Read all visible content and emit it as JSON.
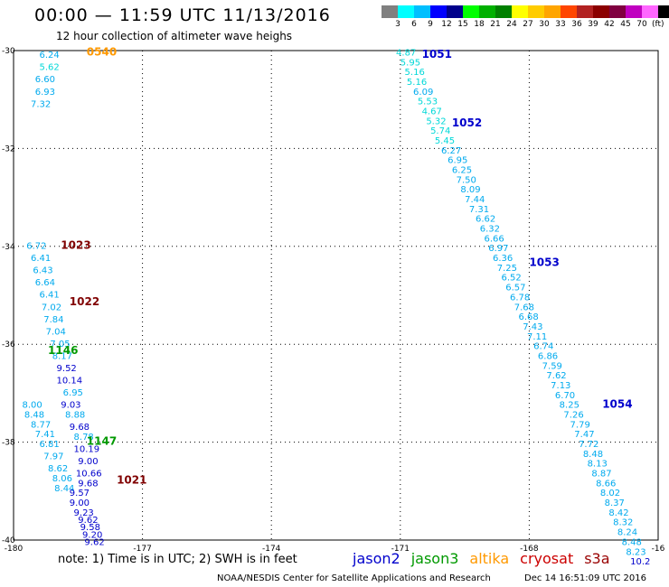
{
  "header": {
    "title": "00:00 — 11:59 UTC 11/13/2016",
    "subtitle": "12 hour collection of altimeter wave heighs"
  },
  "colorbar": {
    "colors": [
      "#808080",
      "#00ffff",
      "#00bfff",
      "#0000ff",
      "#00008b",
      "#00ff00",
      "#00b000",
      "#008000",
      "#ffff00",
      "#ffcc00",
      "#ffa500",
      "#ff4500",
      "#b22222",
      "#8b0000",
      "#800040",
      "#c000c0",
      "#ff66ff",
      "#000000"
    ],
    "labels": [
      "3",
      "6",
      "9",
      "12",
      "15",
      "18",
      "21",
      "24",
      "27",
      "30",
      "33",
      "36",
      "39",
      "42",
      "45",
      "70"
    ],
    "unit": "(ft)"
  },
  "footer": {
    "note": "note: 1) Time is in UTC; 2) SWH is in feet",
    "credit": "NOAA/NESDIS Center for Satellite Applications and Research",
    "stamp": "Dec 14 16:51:09 UTC 2016"
  },
  "legend": [
    {
      "name": "jason2",
      "color": "#0000cc"
    },
    {
      "name": "jason3",
      "color": "#009900"
    },
    {
      "name": "altika",
      "color": "#ff9900"
    },
    {
      "name": "cryosat",
      "color": "#cc0000"
    },
    {
      "name": "s3a",
      "color": "#990000"
    }
  ],
  "chart_data": {
    "type": "scatter",
    "xlim": [
      -180,
      -165
    ],
    "ylim": [
      -40,
      -30
    ],
    "x_ticks": [
      "-180",
      "-177",
      "-174",
      "-171",
      "-168",
      "-16"
    ],
    "y_ticks": [
      "-30",
      "-32",
      "-34",
      "-36",
      "-38",
      "-40"
    ],
    "grid": true,
    "time_labels": [
      {
        "text": "0540",
        "color": "#ff9900",
        "lon": -178.3,
        "lat": -30.1
      },
      {
        "text": "1023",
        "color": "#800000",
        "lon": -178.9,
        "lat": -34.05
      },
      {
        "text": "1022",
        "color": "#800000",
        "lon": -178.7,
        "lat": -35.2
      },
      {
        "text": "1146",
        "color": "#009900",
        "lon": -179.2,
        "lat": -36.2
      },
      {
        "text": "1147",
        "color": "#009900",
        "lon": -178.3,
        "lat": -38.05
      },
      {
        "text": "1021",
        "color": "#800000",
        "lon": -177.6,
        "lat": -38.85
      },
      {
        "text": "1051",
        "color": "#0000cc",
        "lon": -170.5,
        "lat": -30.15
      },
      {
        "text": "1052",
        "color": "#0000cc",
        "lon": -169.8,
        "lat": -31.55
      },
      {
        "text": "1053",
        "color": "#0000cc",
        "lon": -168.0,
        "lat": -34.4
      },
      {
        "text": "1054",
        "color": "#0000cc",
        "lon": -166.3,
        "lat": -37.3
      }
    ],
    "tracks": [
      {
        "points": [
          {
            "lon": -179.4,
            "lat": -30.15,
            "v": "6.24"
          },
          {
            "lon": -179.4,
            "lat": -30.4,
            "v": "5.62"
          },
          {
            "lon": -179.5,
            "lat": -30.65,
            "v": "6.60"
          },
          {
            "lon": -179.5,
            "lat": -30.9,
            "v": "6.93"
          },
          {
            "lon": -179.6,
            "lat": -31.15,
            "v": "7.32"
          }
        ]
      },
      {
        "points": [
          {
            "lon": -179.7,
            "lat": -34.05,
            "v": "6.72"
          },
          {
            "lon": -179.6,
            "lat": -34.3,
            "v": "6.41"
          },
          {
            "lon": -179.55,
            "lat": -34.55,
            "v": "6.43"
          },
          {
            "lon": -179.5,
            "lat": -34.8,
            "v": "6.64"
          },
          {
            "lon": -179.4,
            "lat": -35.05,
            "v": "6.41"
          },
          {
            "lon": -179.35,
            "lat": -35.3,
            "v": "7.02"
          },
          {
            "lon": -179.3,
            "lat": -35.55,
            "v": "7.84"
          },
          {
            "lon": -179.25,
            "lat": -35.8,
            "v": "7.04"
          },
          {
            "lon": -179.15,
            "lat": -36.05,
            "v": "7.05"
          },
          {
            "lon": -179.1,
            "lat": -36.3,
            "v": "8.17"
          },
          {
            "lon": -179.0,
            "lat": -36.55,
            "v": "9.52"
          },
          {
            "lon": -179.0,
            "lat": -36.8,
            "v": "10.14"
          },
          {
            "lon": -178.85,
            "lat": -37.05,
            "v": "6.95"
          },
          {
            "lon": -179.8,
            "lat": -37.3,
            "v": "8.00"
          },
          {
            "lon": -179.75,
            "lat": -37.5,
            "v": "8.48"
          },
          {
            "lon": -179.6,
            "lat": -37.7,
            "v": "8.77"
          },
          {
            "lon": -179.5,
            "lat": -37.9,
            "v": "7.41"
          },
          {
            "lon": -179.4,
            "lat": -38.1,
            "v": "6.81"
          },
          {
            "lon": -179.3,
            "lat": -38.35,
            "v": "7.97"
          },
          {
            "lon": -179.2,
            "lat": -38.6,
            "v": "8.62"
          },
          {
            "lon": -179.1,
            "lat": -38.8,
            "v": "8.06"
          },
          {
            "lon": -179.05,
            "lat": -39.0,
            "v": "8.44"
          }
        ]
      },
      {
        "points": [
          {
            "lon": -178.9,
            "lat": -37.3,
            "v": "9.03"
          },
          {
            "lon": -178.8,
            "lat": -37.5,
            "v": "8.88"
          },
          {
            "lon": -178.7,
            "lat": -37.75,
            "v": "9.68"
          },
          {
            "lon": -178.6,
            "lat": -37.95,
            "v": "8.78"
          },
          {
            "lon": -178.6,
            "lat": -38.2,
            "v": "10.19"
          },
          {
            "lon": -178.5,
            "lat": -38.45,
            "v": "9.00"
          },
          {
            "lon": -178.55,
            "lat": -38.7,
            "v": "10.66"
          },
          {
            "lon": -178.5,
            "lat": -38.9,
            "v": "9.68"
          },
          {
            "lon": -178.7,
            "lat": -39.1,
            "v": "9.57"
          },
          {
            "lon": -178.7,
            "lat": -39.3,
            "v": "9.00"
          },
          {
            "lon": -178.6,
            "lat": -39.5,
            "v": "9.23"
          },
          {
            "lon": -178.5,
            "lat": -39.65,
            "v": "9.62"
          },
          {
            "lon": -178.45,
            "lat": -39.8,
            "v": "9.58"
          },
          {
            "lon": -178.4,
            "lat": -39.95,
            "v": "9.20"
          },
          {
            "lon": -178.35,
            "lat": -40.1,
            "v": "9.62"
          }
        ]
      },
      {
        "points": [
          {
            "lon": -171.1,
            "lat": -30.1,
            "v": "4.87"
          },
          {
            "lon": -171.0,
            "lat": -30.3,
            "v": "5.95"
          },
          {
            "lon": -170.9,
            "lat": -30.5,
            "v": "5.16"
          },
          {
            "lon": -170.85,
            "lat": -30.7,
            "v": "5.16"
          },
          {
            "lon": -170.7,
            "lat": -30.9,
            "v": "6.09"
          },
          {
            "lon": -170.6,
            "lat": -31.1,
            "v": "5.53"
          },
          {
            "lon": -170.5,
            "lat": -31.3,
            "v": "4.67"
          },
          {
            "lon": -170.4,
            "lat": -31.5,
            "v": "5.32"
          },
          {
            "lon": -170.3,
            "lat": -31.7,
            "v": "5.74"
          },
          {
            "lon": -170.2,
            "lat": -31.9,
            "v": "5.45"
          },
          {
            "lon": -170.05,
            "lat": -32.1,
            "v": "6.27"
          },
          {
            "lon": -169.9,
            "lat": -32.3,
            "v": "6.95"
          },
          {
            "lon": -169.8,
            "lat": -32.5,
            "v": "6.25"
          },
          {
            "lon": -169.7,
            "lat": -32.7,
            "v": "7.50"
          },
          {
            "lon": -169.6,
            "lat": -32.9,
            "v": "8.09"
          },
          {
            "lon": -169.5,
            "lat": -33.1,
            "v": "7.44"
          },
          {
            "lon": -169.4,
            "lat": -33.3,
            "v": "7.31"
          },
          {
            "lon": -169.25,
            "lat": -33.5,
            "v": "6.62"
          },
          {
            "lon": -169.15,
            "lat": -33.7,
            "v": "6.32"
          },
          {
            "lon": -169.05,
            "lat": -33.9,
            "v": "6.66"
          },
          {
            "lon": -168.95,
            "lat": -34.1,
            "v": "6.97"
          },
          {
            "lon": -168.85,
            "lat": -34.3,
            "v": "6.36"
          },
          {
            "lon": -168.75,
            "lat": -34.5,
            "v": "7.25"
          },
          {
            "lon": -168.65,
            "lat": -34.7,
            "v": "6.52"
          },
          {
            "lon": -168.55,
            "lat": -34.9,
            "v": "6.57"
          },
          {
            "lon": -168.45,
            "lat": -35.1,
            "v": "6.78"
          },
          {
            "lon": -168.35,
            "lat": -35.3,
            "v": "7.68"
          },
          {
            "lon": -168.25,
            "lat": -35.5,
            "v": "6.68"
          },
          {
            "lon": -168.15,
            "lat": -35.7,
            "v": "7.43"
          },
          {
            "lon": -168.05,
            "lat": -35.9,
            "v": "7.11"
          },
          {
            "lon": -167.9,
            "lat": -36.1,
            "v": "6.74"
          },
          {
            "lon": -167.8,
            "lat": -36.3,
            "v": "6.86"
          },
          {
            "lon": -167.7,
            "lat": -36.5,
            "v": "7.59"
          },
          {
            "lon": -167.6,
            "lat": -36.7,
            "v": "7.62"
          },
          {
            "lon": -167.5,
            "lat": -36.9,
            "v": "7.13"
          },
          {
            "lon": -167.4,
            "lat": -37.1,
            "v": "6.70"
          },
          {
            "lon": -167.3,
            "lat": -37.3,
            "v": "8.25"
          },
          {
            "lon": -167.2,
            "lat": -37.5,
            "v": "7.26"
          },
          {
            "lon": -167.05,
            "lat": -37.7,
            "v": "7.79"
          },
          {
            "lon": -166.95,
            "lat": -37.9,
            "v": "7.47"
          },
          {
            "lon": -166.85,
            "lat": -38.1,
            "v": "7.72"
          },
          {
            "lon": -166.75,
            "lat": -38.3,
            "v": "8.48"
          },
          {
            "lon": -166.65,
            "lat": -38.5,
            "v": "8.13"
          },
          {
            "lon": -166.55,
            "lat": -38.7,
            "v": "8.87"
          },
          {
            "lon": -166.45,
            "lat": -38.9,
            "v": "8.66"
          },
          {
            "lon": -166.35,
            "lat": -39.1,
            "v": "8.02"
          },
          {
            "lon": -166.25,
            "lat": -39.3,
            "v": "8.37"
          },
          {
            "lon": -166.15,
            "lat": -39.5,
            "v": "8.42"
          },
          {
            "lon": -166.05,
            "lat": -39.7,
            "v": "8.32"
          },
          {
            "lon": -165.95,
            "lat": -39.9,
            "v": "8.24"
          },
          {
            "lon": -165.85,
            "lat": -40.1,
            "v": "8.48"
          },
          {
            "lon": -165.75,
            "lat": -40.3,
            "v": "8.23"
          },
          {
            "lon": -165.65,
            "lat": -40.5,
            "v": "10.2"
          }
        ]
      }
    ]
  }
}
